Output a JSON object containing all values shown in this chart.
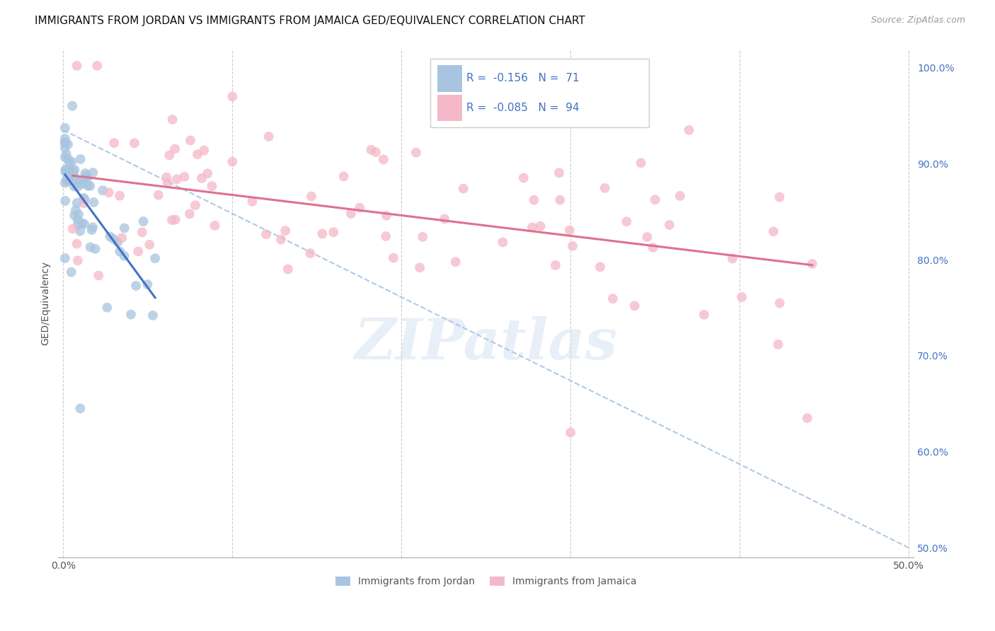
{
  "title": "IMMIGRANTS FROM JORDAN VS IMMIGRANTS FROM JAMAICA GED/EQUIVALENCY CORRELATION CHART",
  "source": "Source: ZipAtlas.com",
  "ylabel": "GED/Equivalency",
  "xlim": [
    -0.003,
    0.503
  ],
  "ylim": [
    0.49,
    1.02
  ],
  "x_ticks": [
    0.0,
    0.1,
    0.2,
    0.3,
    0.4,
    0.5
  ],
  "x_tick_labels": [
    "0.0%",
    "",
    "",
    "",
    "",
    "50.0%"
  ],
  "y_ticks_right": [
    0.5,
    0.6,
    0.7,
    0.8,
    0.9,
    1.0
  ],
  "y_tick_labels_right": [
    "50.0%",
    "60.0%",
    "70.0%",
    "80.0%",
    "90.0%",
    "100.0%"
  ],
  "jordan_color": "#a8c4e0",
  "jamaica_color": "#f4b8c8",
  "jordan_line_color": "#4472c4",
  "jamaica_line_color": "#e07090",
  "dashed_line_color": "#a8c4e0",
  "watermark": "ZIPatlas",
  "jordan_seed": 17,
  "jamaica_seed": 99
}
